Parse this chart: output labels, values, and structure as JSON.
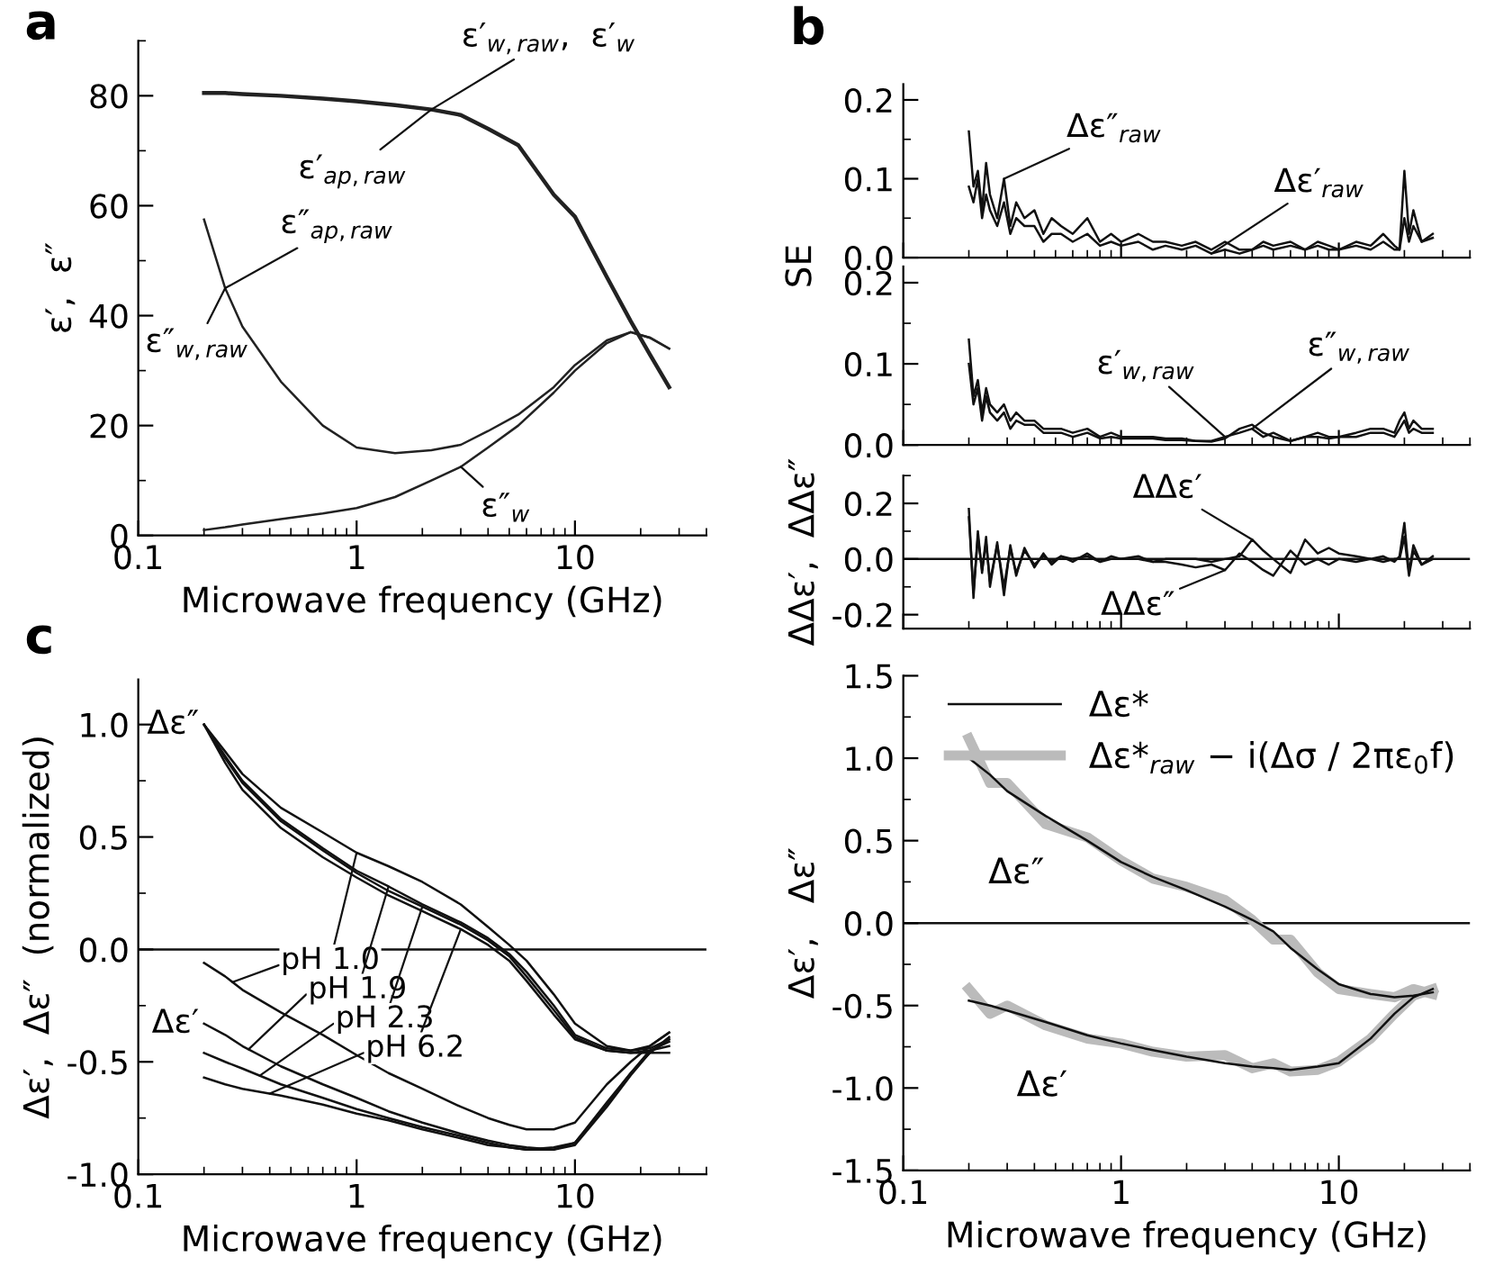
{
  "chart_data": [
    {
      "type": "line",
      "title": "a",
      "xlabel": "Microwave frequency (GHz)",
      "ylabel": "ε′,  ε″",
      "log": "x",
      "xlim": [
        0.1,
        40
      ],
      "xticks": [
        0.1,
        1,
        10
      ],
      "ylim": [
        0,
        90
      ],
      "yticks": [
        0,
        20,
        40,
        60,
        80
      ],
      "x": [
        0.2,
        0.25,
        0.3,
        0.45,
        0.7,
        1,
        1.5,
        2.2,
        3,
        4,
        5.5,
        8,
        10,
        14,
        18,
        22,
        27
      ],
      "series": [
        {
          "color": "#222222",
          "values": [
            80.5,
            80.5,
            80.3,
            80,
            79.5,
            79,
            78.3,
            77.5,
            76.5,
            74,
            71,
            62,
            58,
            47,
            39,
            33,
            27
          ]
        },
        {
          "color": "#222222",
          "values": [
            57.5,
            45,
            38,
            28,
            20,
            16,
            15,
            15.5,
            16.5,
            19,
            22,
            27,
            31,
            35.5,
            37,
            36,
            34
          ]
        },
        {
          "color": "#222222",
          "values": [
            1,
            1.5,
            2,
            3,
            4,
            5,
            7,
            10,
            12.5,
            16,
            20,
            26,
            30,
            35,
            37,
            36,
            34
          ]
        }
      ],
      "annotations": [
        {
          "text": "ε′$_{w,raw}$,  ε′$_{w}$",
          "x": 2.2,
          "y": 77.5
        },
        {
          "text": "ε′$_{ap,raw}$",
          "x": 2.2,
          "y": 77.5
        },
        {
          "text": "ε″$_{ap,raw}$",
          "x": 0.25,
          "y": 45
        },
        {
          "text": "ε″$_{w,raw}$",
          "x": 0.25,
          "y": 45
        },
        {
          "text": "ε″$_{w}$",
          "x": 3,
          "y": 12.5
        }
      ]
    },
    {
      "type": "line",
      "title": "b",
      "ylabel": "SE",
      "log": "x",
      "xlim": [
        0.1,
        40
      ],
      "xticks": [
        0.1,
        1,
        10
      ],
      "ylim": [
        0,
        0.22
      ],
      "yticks": [
        {
          "value": 0,
          "label": "0.0"
        },
        0.1,
        0.2
      ],
      "tick_labels": "y",
      "x": [
        0.2,
        0.21,
        0.22,
        0.23,
        0.24,
        0.25,
        0.27,
        0.29,
        0.31,
        0.33,
        0.36,
        0.4,
        0.44,
        0.48,
        0.53,
        0.6,
        0.7,
        0.8,
        0.9,
        1.0,
        1.2,
        1.4,
        1.6,
        1.9,
        2.2,
        2.6,
        3,
        3.5,
        4,
        4.5,
        5,
        6,
        7,
        8,
        9,
        10,
        12,
        14,
        16,
        18,
        19,
        20,
        21,
        22,
        24,
        27
      ],
      "series": [
        {
          "color": "#111111",
          "values": [
            0.16,
            0.09,
            0.11,
            0.06,
            0.12,
            0.08,
            0.05,
            0.1,
            0.04,
            0.07,
            0.05,
            0.06,
            0.03,
            0.05,
            0.04,
            0.03,
            0.05,
            0.02,
            0.03,
            0.02,
            0.03,
            0.02,
            0.02,
            0.015,
            0.02,
            0.01,
            0.02,
            0.01,
            0.01,
            0.02,
            0.015,
            0.02,
            0.01,
            0.02,
            0.015,
            0.01,
            0.02,
            0.015,
            0.03,
            0.015,
            0.01,
            0.11,
            0.03,
            0.06,
            0.02,
            0.03
          ]
        },
        {
          "color": "#111111",
          "values": [
            0.09,
            0.07,
            0.1,
            0.05,
            0.08,
            0.06,
            0.04,
            0.07,
            0.03,
            0.05,
            0.04,
            0.04,
            0.02,
            0.03,
            0.03,
            0.02,
            0.03,
            0.015,
            0.02,
            0.015,
            0.02,
            0.01,
            0.015,
            0.01,
            0.015,
            0.005,
            0.01,
            0.005,
            0.01,
            0.015,
            0.01,
            0.015,
            0.01,
            0.015,
            0.01,
            0.01,
            0.015,
            0.01,
            0.02,
            0.01,
            0.01,
            0.05,
            0.02,
            0.04,
            0.02,
            0.025
          ]
        }
      ],
      "annotations": [
        {
          "text": "Δε″$_{raw}$",
          "x": 0.29,
          "y": 0.1
        },
        {
          "text": "Δε′$_{raw}$",
          "x": 2.6,
          "y": 0.005
        }
      ]
    },
    {
      "type": "line",
      "log": "x",
      "xlim": [
        0.1,
        40
      ],
      "xticks": [
        0.1,
        1,
        10
      ],
      "ylim": [
        0,
        0.22
      ],
      "yticks": [
        {
          "value": 0,
          "label": "0.0"
        },
        0.1,
        0.2
      ],
      "tick_labels": "y",
      "x": [
        0.2,
        0.21,
        0.22,
        0.23,
        0.24,
        0.25,
        0.27,
        0.29,
        0.31,
        0.33,
        0.36,
        0.4,
        0.44,
        0.48,
        0.53,
        0.6,
        0.7,
        0.8,
        0.9,
        1.0,
        1.2,
        1.4,
        1.6,
        1.9,
        2.2,
        2.6,
        3,
        3.5,
        4,
        4.5,
        5,
        6,
        7,
        8,
        9,
        10,
        12,
        14,
        16,
        18,
        19,
        20,
        21,
        22,
        24,
        27
      ],
      "series": [
        {
          "color": "#111111",
          "values": [
            0.13,
            0.06,
            0.08,
            0.04,
            0.07,
            0.05,
            0.04,
            0.05,
            0.03,
            0.04,
            0.03,
            0.03,
            0.02,
            0.02,
            0.02,
            0.015,
            0.02,
            0.01,
            0.015,
            0.01,
            0.01,
            0.01,
            0.008,
            0.008,
            0.005,
            0.005,
            0.01,
            0.015,
            0.02,
            0.01,
            0.015,
            0.005,
            0.01,
            0.015,
            0.01,
            0.01,
            0.015,
            0.02,
            0.02,
            0.015,
            0.03,
            0.04,
            0.02,
            0.03,
            0.02,
            0.02
          ]
        },
        {
          "color": "#111111",
          "values": [
            0.1,
            0.05,
            0.07,
            0.03,
            0.06,
            0.04,
            0.03,
            0.04,
            0.02,
            0.03,
            0.025,
            0.025,
            0.015,
            0.015,
            0.015,
            0.01,
            0.015,
            0.008,
            0.01,
            0.008,
            0.008,
            0.008,
            0.006,
            0.006,
            0.005,
            0.004,
            0.008,
            0.02,
            0.025,
            0.015,
            0.01,
            0.005,
            0.01,
            0.01,
            0.008,
            0.01,
            0.01,
            0.015,
            0.015,
            0.01,
            0.02,
            0.03,
            0.015,
            0.02,
            0.015,
            0.015
          ]
        }
      ],
      "annotations": [
        {
          "text": "ε′$_{w,raw}$",
          "x": 3,
          "y": 0.01
        },
        {
          "text": "ε″$_{w,raw}$",
          "x": 4,
          "y": 0.02
        }
      ]
    },
    {
      "type": "line",
      "ylabel": "ΔΔε′,  ΔΔε″",
      "log": "x",
      "xlim": [
        0.1,
        40
      ],
      "xticks": [
        0.1,
        1,
        10
      ],
      "ylim": [
        -0.25,
        0.3
      ],
      "yticks": [
        -0.2,
        {
          "value": 0,
          "label": "0.0"
        },
        0.2
      ],
      "tick_labels": "y",
      "ref_lines": [
        {
          "axis": "y",
          "value": 0,
          "color": "#111111"
        }
      ],
      "x": [
        0.2,
        0.21,
        0.22,
        0.23,
        0.24,
        0.25,
        0.27,
        0.29,
        0.31,
        0.33,
        0.36,
        0.4,
        0.44,
        0.48,
        0.53,
        0.6,
        0.7,
        0.8,
        0.9,
        1.0,
        1.2,
        1.4,
        1.6,
        1.9,
        2.2,
        2.6,
        3,
        3.5,
        4,
        4.5,
        5,
        6,
        7,
        8,
        9,
        10,
        12,
        14,
        16,
        18,
        19,
        20,
        21,
        22,
        24,
        27
      ],
      "series": [
        {
          "color": "#111111",
          "values": [
            0.18,
            -0.14,
            0.1,
            -0.05,
            0.08,
            -0.1,
            0.06,
            -0.13,
            0.05,
            -0.06,
            0.04,
            -0.03,
            0.02,
            -0.02,
            0.01,
            -0.01,
            0.02,
            -0.01,
            0.01,
            0.0,
            0.01,
            -0.01,
            0.0,
            0.0,
            0.0,
            -0.01,
            0.0,
            0.01,
            0.07,
            0.03,
            0.0,
            -0.05,
            0.07,
            0.02,
            0.04,
            0.02,
            0.01,
            0.0,
            0.01,
            -0.01,
            0.01,
            0.13,
            -0.05,
            0.05,
            -0.02,
            0.01
          ]
        },
        {
          "color": "#111111",
          "values": [
            0.15,
            -0.12,
            0.08,
            -0.04,
            0.06,
            -0.08,
            0.05,
            -0.1,
            0.04,
            -0.05,
            0.03,
            -0.02,
            0.01,
            -0.01,
            0.01,
            0.0,
            0.01,
            -0.01,
            0.0,
            0.0,
            0.0,
            -0.01,
            -0.01,
            -0.02,
            -0.03,
            -0.02,
            -0.04,
            0.02,
            -0.01,
            -0.04,
            -0.06,
            0.03,
            -0.02,
            0.0,
            -0.02,
            0.0,
            -0.01,
            0.0,
            -0.01,
            0.0,
            0.0,
            0.08,
            -0.06,
            0.03,
            -0.02,
            0.0
          ]
        }
      ],
      "annotations": [
        {
          "text": "ΔΔε′",
          "x": 4,
          "y": 0.07
        },
        {
          "text": "ΔΔε″",
          "x": 3,
          "y": -0.04
        }
      ]
    },
    {
      "type": "line",
      "xlabel": "Microwave frequency (GHz)",
      "ylabel": "Δε′,   Δε″",
      "log": "x",
      "xlim": [
        0.1,
        40
      ],
      "xticks": [
        0.1,
        1,
        10
      ],
      "ylim": [
        -1.5,
        1.5
      ],
      "yticks": [
        {
          "value": -1.5,
          "label": "-1.5"
        },
        {
          "value": -1.0,
          "label": "-1.0"
        },
        {
          "value": -0.5,
          "label": "-0.5"
        },
        {
          "value": 0,
          "label": "0.0"
        },
        {
          "value": 0.5,
          "label": "0.5"
        },
        {
          "value": 1.0,
          "label": "1.0"
        },
        {
          "value": 1.5,
          "label": "1.5"
        }
      ],
      "legend": "top right",
      "ref_lines": [
        {
          "axis": "y",
          "value": 0,
          "color": "#111111"
        }
      ],
      "x": [
        0.2,
        0.25,
        0.3,
        0.45,
        0.7,
        1,
        1.4,
        2,
        3,
        4,
        5,
        6,
        8,
        10,
        14,
        18,
        22,
        27
      ],
      "series": [
        {
          "name": "Δε*",
          "color": "#111111",
          "values": [
            1.0,
            0.9,
            0.8,
            0.65,
            0.5,
            0.37,
            0.28,
            0.2,
            0.1,
            0.02,
            -0.05,
            -0.15,
            -0.28,
            -0.37,
            -0.43,
            -0.45,
            -0.44,
            -0.42
          ]
        },
        {
          "color": "#111111",
          "values": [
            -0.47,
            -0.5,
            -0.53,
            -0.6,
            -0.68,
            -0.73,
            -0.77,
            -0.81,
            -0.85,
            -0.87,
            -0.88,
            -0.89,
            -0.87,
            -0.85,
            -0.7,
            -0.55,
            -0.45,
            -0.4
          ]
        },
        {
          "name": "Δε*$_{raw}$ − i(Δσ / 2πε$_{0}$f)",
          "color": "#bbbbbb",
          "values": [
            1.12,
            0.85,
            0.85,
            0.6,
            0.52,
            0.38,
            0.27,
            0.22,
            0.14,
            0.02,
            -0.1,
            -0.1,
            -0.3,
            -0.4,
            -0.43,
            -0.45,
            -0.4,
            -0.43
          ]
        },
        {
          "color": "#bbbbbb",
          "values": [
            -0.4,
            -0.55,
            -0.5,
            -0.62,
            -0.7,
            -0.73,
            -0.78,
            -0.81,
            -0.8,
            -0.88,
            -0.85,
            -0.9,
            -0.89,
            -0.84,
            -0.7,
            -0.55,
            -0.44,
            -0.4
          ]
        }
      ],
      "annotations": [
        "Δε″",
        "Δε′"
      ]
    },
    {
      "type": "line",
      "title": "c",
      "xlabel": "Microwave frequency (GHz)",
      "ylabel": "Δε′,  Δε″  (normalized)",
      "log": "x",
      "xlim": [
        0.1,
        40
      ],
      "xticks": [
        0.1,
        1,
        10
      ],
      "ylim": [
        -1.0,
        1.2
      ],
      "yticks": [
        {
          "value": -1.0,
          "label": "-1.0"
        },
        {
          "value": -0.5,
          "label": "-0.5"
        },
        {
          "value": 0,
          "label": "0.0"
        },
        {
          "value": 0.5,
          "label": "0.5"
        },
        {
          "value": 1.0,
          "label": "1.0"
        }
      ],
      "ref_lines": [
        {
          "axis": "y",
          "value": 0,
          "color": "#111111"
        }
      ],
      "x": [
        0.2,
        0.25,
        0.3,
        0.45,
        0.7,
        1,
        1.4,
        2,
        3,
        4,
        5,
        6,
        8,
        10,
        14,
        18,
        22,
        27
      ],
      "series": [
        {
          "color": "#111111",
          "values": [
            1.0,
            0.88,
            0.78,
            0.63,
            0.52,
            0.43,
            0.37,
            0.3,
            0.2,
            0.1,
            0.02,
            -0.05,
            -0.2,
            -0.33,
            -0.43,
            -0.45,
            -0.43,
            -0.37
          ]
        },
        {
          "color": "#111111",
          "values": [
            -0.06,
            -0.12,
            -0.18,
            -0.28,
            -0.38,
            -0.47,
            -0.55,
            -0.62,
            -0.7,
            -0.75,
            -0.78,
            -0.8,
            -0.8,
            -0.77,
            -0.6,
            -0.5,
            -0.43,
            -0.37
          ]
        },
        {
          "color": "#111111",
          "values": [
            1.0,
            0.86,
            0.75,
            0.58,
            0.45,
            0.35,
            0.28,
            0.2,
            0.12,
            0.05,
            -0.02,
            -0.1,
            -0.25,
            -0.38,
            -0.44,
            -0.45,
            -0.44,
            -0.4
          ]
        },
        {
          "color": "#111111",
          "values": [
            -0.33,
            -0.38,
            -0.43,
            -0.52,
            -0.6,
            -0.66,
            -0.72,
            -0.77,
            -0.82,
            -0.85,
            -0.87,
            -0.88,
            -0.89,
            -0.86,
            -0.68,
            -0.55,
            -0.46,
            -0.39
          ]
        },
        {
          "color": "#111111",
          "values": [
            1.0,
            0.85,
            0.74,
            0.57,
            0.44,
            0.34,
            0.26,
            0.19,
            0.11,
            0.04,
            -0.03,
            -0.12,
            -0.27,
            -0.39,
            -0.45,
            -0.46,
            -0.45,
            -0.43
          ]
        },
        {
          "color": "#111111",
          "values": [
            -0.46,
            -0.5,
            -0.53,
            -0.6,
            -0.66,
            -0.71,
            -0.75,
            -0.79,
            -0.83,
            -0.86,
            -0.88,
            -0.89,
            -0.89,
            -0.87,
            -0.7,
            -0.56,
            -0.46,
            -0.4
          ]
        },
        {
          "color": "#111111",
          "values": [
            1.0,
            0.83,
            0.71,
            0.54,
            0.41,
            0.32,
            0.24,
            0.17,
            0.09,
            0.02,
            -0.05,
            -0.14,
            -0.29,
            -0.4,
            -0.45,
            -0.46,
            -0.46,
            -0.46
          ]
        },
        {
          "color": "#111111",
          "values": [
            -0.57,
            -0.6,
            -0.62,
            -0.65,
            -0.69,
            -0.73,
            -0.76,
            -0.8,
            -0.84,
            -0.87,
            -0.88,
            -0.89,
            -0.88,
            -0.86,
            -0.69,
            -0.55,
            -0.45,
            -0.41
          ]
        }
      ],
      "annotations": [
        {
          "text": "Δε″",
          "x": 0.2,
          "y": 1.0
        },
        {
          "text": "Δε′",
          "x": 0.2,
          "y": -0.33
        },
        {
          "text": "pH 1.0",
          "x": 1,
          "y": 0.43
        },
        {
          "text": "pH 1.9",
          "x": 1.4,
          "y": 0.28
        },
        {
          "text": "pH 2.3",
          "x": 2,
          "y": 0.19
        },
        {
          "text": "pH 6.2",
          "x": 3,
          "y": 0.09
        }
      ]
    }
  ]
}
